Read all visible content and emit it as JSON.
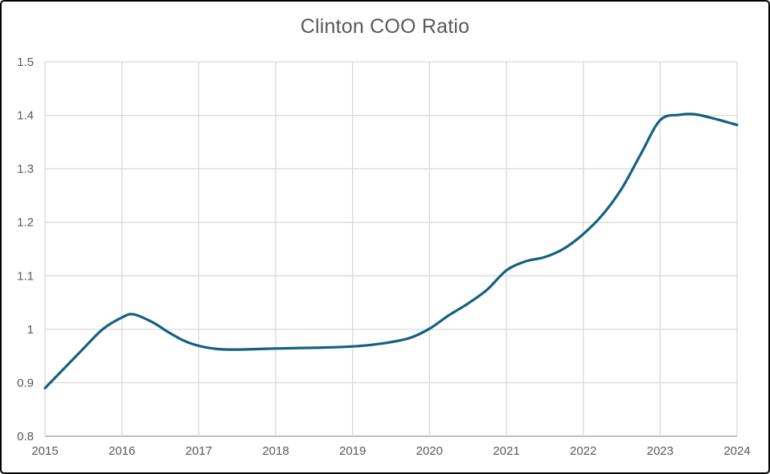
{
  "chart_data": {
    "type": "line",
    "title": "Clinton COO Ratio",
    "xlabel": "",
    "ylabel": "",
    "xlim": [
      2015,
      2024
    ],
    "ylim": [
      0.8,
      1.5
    ],
    "grid": true,
    "legend": "none",
    "x_tick_values": [
      2015,
      2016,
      2017,
      2018,
      2019,
      2020,
      2021,
      2022,
      2023,
      2024
    ],
    "x_tick_labels": [
      "2015",
      "2016",
      "2017",
      "2018",
      "2019",
      "2020",
      "2021",
      "2022",
      "2023",
      "2024"
    ],
    "y_tick_values": [
      0.8,
      0.9,
      1.0,
      1.1,
      1.2,
      1.3,
      1.4,
      1.5
    ],
    "y_tick_labels": [
      "0.8",
      "0.9",
      "1",
      "1.1",
      "1.2",
      "1.3",
      "1.4",
      "1.5"
    ],
    "series": [
      {
        "name": "Clinton COO Ratio",
        "color": "#156082",
        "smooth": true,
        "points": [
          [
            2015.0,
            0.89
          ],
          [
            2015.25,
            0.927
          ],
          [
            2015.5,
            0.964
          ],
          [
            2015.75,
            1.0
          ],
          [
            2016.0,
            1.022
          ],
          [
            2016.15,
            1.028
          ],
          [
            2016.4,
            1.013
          ],
          [
            2016.6,
            0.995
          ],
          [
            2016.8,
            0.979
          ],
          [
            2017.0,
            0.969
          ],
          [
            2017.25,
            0.963
          ],
          [
            2017.5,
            0.962
          ],
          [
            2017.75,
            0.963
          ],
          [
            2018.0,
            0.964
          ],
          [
            2018.33,
            0.965
          ],
          [
            2018.67,
            0.966
          ],
          [
            2019.0,
            0.968
          ],
          [
            2019.25,
            0.971
          ],
          [
            2019.5,
            0.976
          ],
          [
            2019.75,
            0.984
          ],
          [
            2020.0,
            1.001
          ],
          [
            2020.25,
            1.026
          ],
          [
            2020.5,
            1.048
          ],
          [
            2020.75,
            1.074
          ],
          [
            2021.0,
            1.11
          ],
          [
            2021.25,
            1.127
          ],
          [
            2021.5,
            1.135
          ],
          [
            2021.75,
            1.151
          ],
          [
            2022.0,
            1.178
          ],
          [
            2022.25,
            1.214
          ],
          [
            2022.5,
            1.263
          ],
          [
            2022.75,
            1.328
          ],
          [
            2023.0,
            1.391
          ],
          [
            2023.25,
            1.401
          ],
          [
            2023.45,
            1.402
          ],
          [
            2023.7,
            1.394
          ],
          [
            2024.0,
            1.382
          ]
        ]
      }
    ]
  },
  "colors": {
    "title_text": "#595959",
    "tick_text": "#595959",
    "gridline": "#D9D9D9",
    "axis_line": "#BFBFBF",
    "line": "#156082",
    "background": "#ffffff",
    "frame_border": "#000000"
  }
}
